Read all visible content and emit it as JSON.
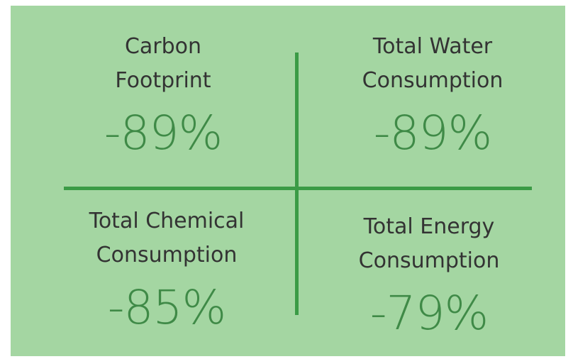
{
  "quadrants": [
    {
      "label_lines": [
        "Carbon",
        "Footprint"
      ],
      "value": "-89%"
    },
    {
      "label_lines": [
        "Total Water",
        "Consumption"
      ],
      "value": "-89%"
    },
    {
      "label_lines": [
        "Total Chemical",
        "Consumption"
      ],
      "value": "-85%"
    },
    {
      "label_lines": [
        "Total Energy",
        "Consumption"
      ],
      "value": "-79%"
    }
  ]
}
